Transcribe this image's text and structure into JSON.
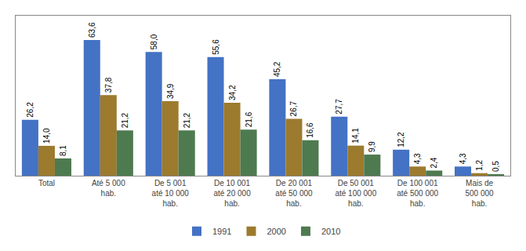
{
  "chart_data": {
    "type": "bar",
    "categories": [
      "Total",
      "Até 5 000\nhab.",
      "De 5 001\naté 10 000\nhab.",
      "De 10 001\naté 20 000\nhab.",
      "De 20 001\naté 50 000\nhab.",
      "De 50 001\naté 100 000\nhab.",
      "De 100 001\naté 500 000\nhab.",
      "Mais de\n500 000\nhab."
    ],
    "series": [
      {
        "name": "1991",
        "color": "#4472C4",
        "values": [
          26.2,
          63.6,
          58.0,
          55.6,
          45.2,
          27.7,
          12.2,
          4.3
        ],
        "value_labels": [
          "26,2",
          "63,6",
          "58,0",
          "55,6",
          "45,2",
          "27,7",
          "12,2",
          "4,3"
        ]
      },
      {
        "name": "2000",
        "color": "#9C7A2E",
        "values": [
          14.0,
          37.8,
          34.9,
          34.2,
          26.7,
          14.1,
          4.3,
          1.2
        ],
        "value_labels": [
          "14,0",
          "37,8",
          "34,9",
          "34,2",
          "26,7",
          "14,1",
          "4,3",
          "1,2"
        ]
      },
      {
        "name": "2010",
        "color": "#4E7A50",
        "values": [
          8.1,
          21.2,
          21.2,
          21.6,
          16.6,
          9.9,
          2.4,
          0.5
        ],
        "value_labels": [
          "8,1",
          "21,2",
          "21,2",
          "21,6",
          "16,6",
          "9,9",
          "2,4",
          "0,5"
        ]
      }
    ],
    "ylim": [
      0,
      75
    ],
    "grid": false,
    "legend": "bottom",
    "data_labels": true,
    "tick_labels": "x"
  }
}
